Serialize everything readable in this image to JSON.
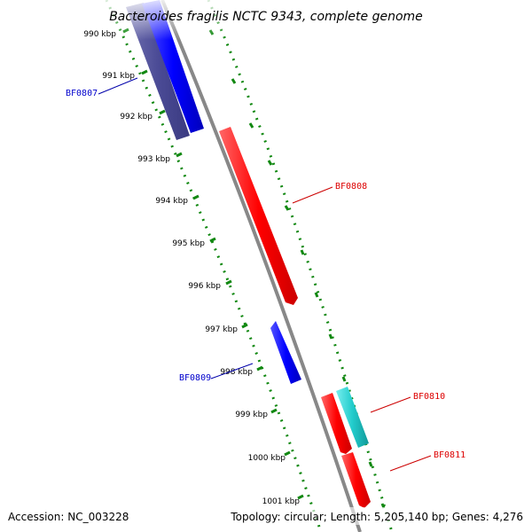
{
  "title": "Bacteroides fragilis NCTC 9343, complete genome",
  "footer": {
    "accession": "Accession: NC_003228",
    "summary": "Topology: circular; Length: 5,205,140 bp; Genes: 4,276"
  },
  "ticks": [
    "990 kbp",
    "991 kbp",
    "992 kbp",
    "993 kbp",
    "994 kbp",
    "995 kbp",
    "996 kbp",
    "997 kbp",
    "998 kbp",
    "999 kbp",
    "1000 kbp",
    "1001 kbp"
  ],
  "genes": [
    {
      "name": "BF0807",
      "color": "#0000cc"
    },
    {
      "name": "BF0808",
      "color": "#dd0000"
    },
    {
      "name": "BF0809",
      "color": "#0000cc"
    },
    {
      "name": "BF0810",
      "color": "#dd0000"
    },
    {
      "name": "BF0811",
      "color": "#dd0000"
    }
  ],
  "colors": {
    "forward_feature": "#ff0000",
    "reverse_feature": "#0000ff",
    "dark_feature": "#4b4b96",
    "cyan_feature": "#22cccc",
    "backbone": "#888888",
    "scale": "#118811"
  }
}
